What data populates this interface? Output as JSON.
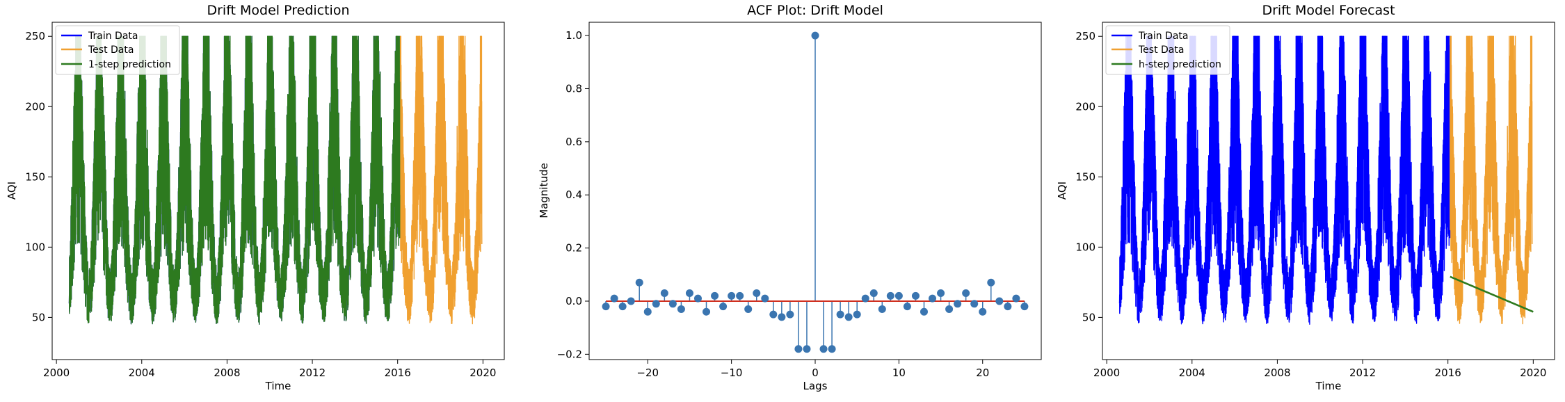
{
  "figure": {
    "background": "#ffffff",
    "panels": [
      "drift-prediction",
      "acf",
      "drift-forecast"
    ]
  },
  "colors": {
    "train": "#0000ff",
    "test": "#f0a030",
    "prediction": "#2d7a1f",
    "stem": "#3a75b0",
    "baseline": "#d03020",
    "axes": "#000000"
  },
  "chart_data": [
    {
      "type": "line",
      "id": "drift-prediction",
      "title": "Drift Model Prediction",
      "xlabel": "Time",
      "ylabel": "AQI",
      "xlim": [
        1999.8,
        2021.0
      ],
      "ylim": [
        20,
        260
      ],
      "xticks": [
        2000,
        2004,
        2008,
        2012,
        2016,
        2020
      ],
      "xtick_labels": [
        "2000",
        "2004",
        "2008",
        "2012",
        "2016",
        "2020"
      ],
      "yticks": [
        50,
        100,
        150,
        200,
        250
      ],
      "ytick_labels": [
        "50",
        "100",
        "150",
        "200",
        "250"
      ],
      "legend_position": "upper-left",
      "series": [
        {
          "name": "Train Data",
          "color": "#0000ff",
          "x_range": [
            2000.6,
            2016.1
          ],
          "kind": "seasonal-daily",
          "min": 40,
          "max": 250
        },
        {
          "name": "Test Data",
          "color": "#f0a030",
          "x_range": [
            2016.1,
            2019.95
          ],
          "kind": "seasonal-daily",
          "min": 40,
          "max": 250
        },
        {
          "name": "1-step prediction",
          "color": "#2d7a1f",
          "x_range": [
            2000.6,
            2016.1
          ],
          "kind": "seasonal-daily",
          "min": 40,
          "max": 250
        }
      ]
    },
    {
      "type": "stem",
      "id": "acf",
      "title": "ACF Plot: Drift Model",
      "xlabel": "Lags",
      "ylabel": "Magnitude",
      "xlim": [
        -27,
        27
      ],
      "ylim": [
        -0.22,
        1.05
      ],
      "xticks": [
        -20,
        -10,
        0,
        10,
        20
      ],
      "xtick_labels": [
        "−20",
        "−10",
        "0",
        "10",
        "20"
      ],
      "yticks": [
        -0.2,
        0.0,
        0.2,
        0.4,
        0.6,
        0.8,
        1.0
      ],
      "ytick_labels": [
        "−0.2",
        "0.0",
        "0.2",
        "0.4",
        "0.6",
        "0.8",
        "1.0"
      ],
      "lags": [
        -25,
        -24,
        -23,
        -22,
        -21,
        -20,
        -19,
        -18,
        -17,
        -16,
        -15,
        -14,
        -13,
        -12,
        -11,
        -10,
        -9,
        -8,
        -7,
        -6,
        -5,
        -4,
        -3,
        -2,
        -1,
        0,
        1,
        2,
        3,
        4,
        5,
        6,
        7,
        8,
        9,
        10,
        11,
        12,
        13,
        14,
        15,
        16,
        17,
        18,
        19,
        20,
        21,
        22,
        23,
        24,
        25
      ],
      "values": [
        -0.02,
        0.01,
        -0.02,
        0.0,
        0.07,
        -0.04,
        -0.01,
        0.03,
        -0.01,
        -0.03,
        0.03,
        0.01,
        -0.04,
        0.02,
        -0.02,
        0.02,
        0.02,
        -0.03,
        0.03,
        0.01,
        -0.05,
        -0.06,
        -0.05,
        -0.18,
        -0.18,
        1.0,
        -0.18,
        -0.18,
        -0.05,
        -0.06,
        -0.05,
        0.01,
        0.03,
        -0.03,
        0.02,
        0.02,
        -0.02,
        0.02,
        -0.04,
        0.01,
        0.03,
        -0.03,
        -0.01,
        0.03,
        -0.01,
        -0.04,
        0.07,
        0.0,
        -0.02,
        0.01,
        -0.02
      ]
    },
    {
      "type": "line",
      "id": "drift-forecast",
      "title": "Drift Model Forecast",
      "xlabel": "Time",
      "ylabel": "AQI",
      "xlim": [
        1999.8,
        2021.0
      ],
      "ylim": [
        20,
        260
      ],
      "xticks": [
        2000,
        2004,
        2008,
        2012,
        2016,
        2020
      ],
      "xtick_labels": [
        "2000",
        "2004",
        "2008",
        "2012",
        "2016",
        "2020"
      ],
      "yticks": [
        50,
        100,
        150,
        200,
        250
      ],
      "ytick_labels": [
        "50",
        "100",
        "150",
        "200",
        "250"
      ],
      "legend_position": "upper-left",
      "series": [
        {
          "name": "Train Data",
          "color": "#0000ff",
          "x_range": [
            2000.6,
            2016.1
          ],
          "kind": "seasonal-daily",
          "min": 40,
          "max": 250
        },
        {
          "name": "Test Data",
          "color": "#f0a030",
          "x_range": [
            2016.1,
            2019.95
          ],
          "kind": "seasonal-daily",
          "min": 40,
          "max": 250
        },
        {
          "name": "h-step prediction",
          "color": "#2d7a1f",
          "x": [
            2016.1,
            2020.0
          ],
          "y": [
            79,
            54
          ]
        }
      ]
    }
  ]
}
